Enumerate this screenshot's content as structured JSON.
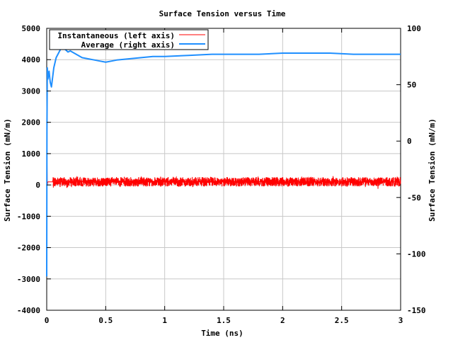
{
  "chart_data": {
    "type": "line",
    "title": "Surface Tension versus Time",
    "xlabel": "Time (ns)",
    "ylabel_left": "Surface Tension (mN/m)",
    "ylabel_right": "Surface Tension (mN/m)",
    "x_range": [
      0,
      3
    ],
    "y_left_range": [
      -4000,
      5000
    ],
    "y_right_range": [
      -150,
      100
    ],
    "x_ticks": [
      0,
      0.5,
      1,
      1.5,
      2,
      2.5,
      3
    ],
    "x_tick_labels": [
      "0",
      "0.5",
      "1",
      "1.5",
      "2",
      "2.5",
      "3"
    ],
    "y_left_ticks": [
      -4000,
      -3000,
      -2000,
      -1000,
      0,
      1000,
      2000,
      3000,
      4000,
      5000
    ],
    "y_left_tick_labels": [
      "-4000",
      "-3000",
      "-2000",
      "-1000",
      "0",
      "1000",
      "2000",
      "3000",
      "4000",
      "5000"
    ],
    "y_right_ticks": [
      -150,
      -100,
      -50,
      0,
      50,
      100
    ],
    "y_right_tick_labels": [
      "-150",
      "-100",
      "-50",
      "0",
      "50",
      "100"
    ],
    "grid": true,
    "legend_position": "top-left",
    "series": [
      {
        "name": "Instantaneous (left axis)",
        "axis": "left",
        "color": "#ff0000",
        "baseline": 100,
        "amplitude": 150,
        "x": [
          0,
          0.002,
          0.005,
          0.01,
          0.02,
          0.05,
          0.1,
          0.5,
          1,
          1.5,
          2,
          2.5,
          3
        ],
        "y": [
          -2900,
          1000,
          0,
          100,
          100,
          100,
          100,
          100,
          100,
          100,
          100,
          100,
          100
        ]
      },
      {
        "name": "Average (right axis)",
        "axis": "right",
        "color": "#1f8fff",
        "x": [
          0,
          0.002,
          0.005,
          0.01,
          0.02,
          0.03,
          0.04,
          0.06,
          0.08,
          0.1,
          0.12,
          0.14,
          0.16,
          0.18,
          0.2,
          0.25,
          0.3,
          0.35,
          0.4,
          0.45,
          0.5,
          0.55,
          0.6,
          0.7,
          0.8,
          0.9,
          1.0,
          1.2,
          1.4,
          1.6,
          1.8,
          2.0,
          2.2,
          2.4,
          2.6,
          2.8,
          3.0
        ],
        "y": [
          -120,
          10,
          65,
          55,
          62,
          52,
          48,
          65,
          74,
          78,
          82,
          83,
          81,
          79,
          80,
          77,
          74,
          73,
          72,
          71,
          70,
          71,
          72,
          73,
          74,
          75,
          75,
          76,
          77,
          77,
          77,
          78,
          78,
          78,
          77,
          77,
          77
        ]
      }
    ]
  }
}
